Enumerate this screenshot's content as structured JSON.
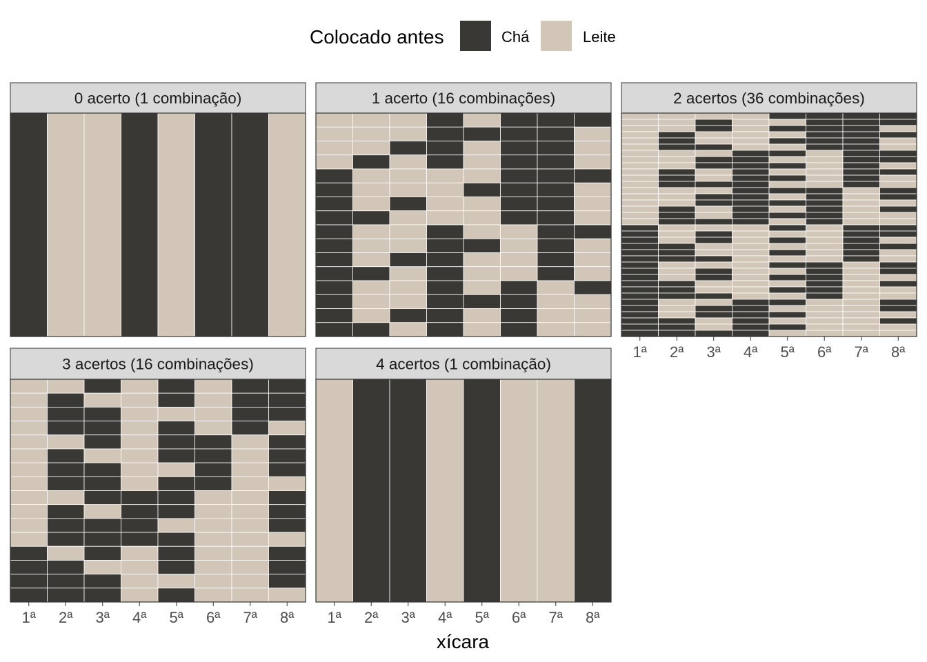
{
  "chart_data": {
    "type": "heatmap",
    "title": "",
    "xlabel": "xícara",
    "ylabel": "",
    "legend": {
      "title": "Colocado antes",
      "position": "top",
      "items": [
        {
          "label": "Chá",
          "color": "#3a3835"
        },
        {
          "label": "Leite",
          "color": "#d1c6b8"
        }
      ]
    },
    "x_categories": [
      "1ª",
      "2ª",
      "3ª",
      "4ª",
      "5ª",
      "6ª",
      "7ª",
      "8ª"
    ],
    "truth": [
      "L",
      "C",
      "C",
      "L",
      "C",
      "L",
      "L",
      "C"
    ],
    "panels": [
      {
        "title": "0 acerto (1 combinação)",
        "hits": 0,
        "combinations": 1
      },
      {
        "title": "1 acerto (16 combinações)",
        "hits": 1,
        "combinations": 16
      },
      {
        "title": "2 acertos (36 combinações)",
        "hits": 2,
        "combinations": 36
      },
      {
        "title": "3 acertos (16 combinações)",
        "hits": 3,
        "combinations": 16
      },
      {
        "title": "4 acertos (1 combinação)",
        "hits": 4,
        "combinations": 1
      }
    ]
  }
}
